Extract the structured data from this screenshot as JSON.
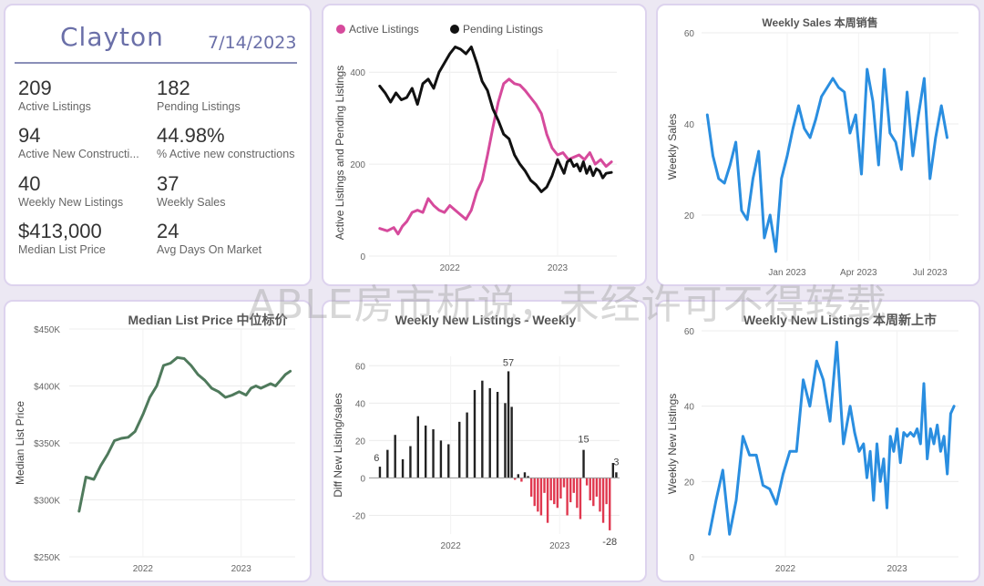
{
  "summary": {
    "city": "Clayton",
    "date": "7/14/2023",
    "kpis": [
      {
        "value": "209",
        "label": "Active Listings"
      },
      {
        "value": "182",
        "label": "Pending Listings"
      },
      {
        "value": "94",
        "label": "Active New Constructi..."
      },
      {
        "value": "44.98%",
        "label": "% Active new constructions"
      },
      {
        "value": "40",
        "label": "Weekly New Listings"
      },
      {
        "value": "37",
        "label": "Weekly Sales"
      },
      {
        "value": "$413,000",
        "label": "Median List Price"
      },
      {
        "value": "24",
        "label": "Avg Days On Market"
      }
    ]
  },
  "watermark": "ABLE房市析说，未经许可不得转载",
  "chart_data": [
    {
      "id": "active-pending",
      "type": "line",
      "title": "",
      "xlabel": "",
      "ylabel": "Active Listings and Pending Listings",
      "xlim": [
        2021.25,
        2023.55
      ],
      "ylim": [
        0,
        450
      ],
      "yticks": [
        0,
        200,
        400
      ],
      "xticks": [
        {
          "v": 2022,
          "label": "2022"
        },
        {
          "v": 2023,
          "label": "2023"
        }
      ],
      "legend": "top-left",
      "colors": [
        "#d64a9c",
        "#111111"
      ],
      "series": [
        {
          "name": "Active Listings",
          "x": [
            2021.35,
            2021.42,
            2021.48,
            2021.52,
            2021.56,
            2021.6,
            2021.65,
            2021.7,
            2021.75,
            2021.8,
            2021.85,
            2021.9,
            2021.95,
            2022.0,
            2022.05,
            2022.1,
            2022.15,
            2022.2,
            2022.25,
            2022.3,
            2022.35,
            2022.4,
            2022.45,
            2022.5,
            2022.55,
            2022.6,
            2022.65,
            2022.7,
            2022.75,
            2022.8,
            2022.85,
            2022.9,
            2022.95,
            2023.0,
            2023.05,
            2023.1,
            2023.15,
            2023.2,
            2023.25,
            2023.3,
            2023.35,
            2023.4,
            2023.45,
            2023.5
          ],
          "values": [
            60,
            55,
            62,
            48,
            65,
            75,
            95,
            100,
            95,
            125,
            110,
            100,
            95,
            110,
            100,
            90,
            80,
            100,
            140,
            165,
            220,
            280,
            335,
            375,
            385,
            375,
            372,
            360,
            345,
            330,
            310,
            265,
            235,
            220,
            225,
            210,
            215,
            220,
            210,
            225,
            200,
            210,
            195,
            205
          ]
        },
        {
          "name": "Pending Listings",
          "x": [
            2021.35,
            2021.4,
            2021.45,
            2021.5,
            2021.55,
            2021.6,
            2021.65,
            2021.7,
            2021.75,
            2021.8,
            2021.85,
            2021.9,
            2021.95,
            2022.0,
            2022.05,
            2022.1,
            2022.15,
            2022.2,
            2022.25,
            2022.3,
            2022.35,
            2022.4,
            2022.45,
            2022.5,
            2022.55,
            2022.6,
            2022.65,
            2022.7,
            2022.75,
            2022.8,
            2022.85,
            2022.9,
            2022.95,
            2023.0,
            2023.03,
            2023.06,
            2023.09,
            2023.12,
            2023.15,
            2023.18,
            2023.21,
            2023.24,
            2023.27,
            2023.3,
            2023.33,
            2023.36,
            2023.39,
            2023.42,
            2023.45,
            2023.5
          ],
          "values": [
            370,
            355,
            335,
            355,
            340,
            345,
            365,
            330,
            375,
            385,
            365,
            400,
            420,
            440,
            455,
            450,
            440,
            455,
            420,
            380,
            360,
            320,
            295,
            265,
            255,
            220,
            200,
            185,
            165,
            155,
            140,
            150,
            175,
            210,
            195,
            180,
            205,
            210,
            195,
            200,
            185,
            205,
            180,
            195,
            175,
            190,
            185,
            170,
            180,
            182
          ]
        }
      ]
    },
    {
      "id": "weekly-sales",
      "type": "line",
      "title": "Weekly Sales 本周销售",
      "xlabel": "",
      "ylabel": "Weekly Sales",
      "xlim": [
        2022.7,
        2023.6
      ],
      "ylim": [
        10,
        60
      ],
      "yticks": [
        20,
        40,
        60
      ],
      "xticks": [
        {
          "v": 2023.0,
          "label": "Jan 2023"
        },
        {
          "v": 2023.25,
          "label": "Apr 2023"
        },
        {
          "v": 2023.5,
          "label": "Jul 2023"
        }
      ],
      "colors": [
        "#2a8ee0"
      ],
      "series": [
        {
          "name": "",
          "x": [
            2022.72,
            2022.74,
            2022.76,
            2022.78,
            2022.8,
            2022.82,
            2022.84,
            2022.86,
            2022.88,
            2022.9,
            2022.92,
            2022.94,
            2022.96,
            2022.98,
            2023.0,
            2023.02,
            2023.04,
            2023.06,
            2023.08,
            2023.1,
            2023.12,
            2023.14,
            2023.16,
            2023.18,
            2023.2,
            2023.22,
            2023.24,
            2023.26,
            2023.28,
            2023.3,
            2023.32,
            2023.34,
            2023.36,
            2023.38,
            2023.4,
            2023.42,
            2023.44,
            2023.46,
            2023.48,
            2023.5,
            2023.52,
            2023.54,
            2023.56
          ],
          "values": [
            42,
            33,
            28,
            27,
            31,
            36,
            21,
            19,
            28,
            34,
            15,
            20,
            12,
            28,
            33,
            39,
            44,
            39,
            37,
            41,
            46,
            48,
            50,
            48,
            47,
            38,
            42,
            29,
            52,
            45,
            31,
            52,
            38,
            36,
            30,
            47,
            33,
            42,
            50,
            28,
            37,
            44,
            37
          ]
        }
      ]
    },
    {
      "id": "median-list-price",
      "type": "line",
      "title": "Median List Price  中位标价",
      "xlabel": "",
      "ylabel": "Median List Price",
      "xlim": [
        2021.25,
        2023.55
      ],
      "ylim": [
        250000,
        450000
      ],
      "yticks": [
        {
          "v": 250000,
          "label": "$250K"
        },
        {
          "v": 300000,
          "label": "$300K"
        },
        {
          "v": 350000,
          "label": "$350K"
        },
        {
          "v": 400000,
          "label": "$400K"
        },
        {
          "v": 450000,
          "label": "$450K"
        }
      ],
      "xticks": [
        {
          "v": 2022,
          "label": "2022"
        },
        {
          "v": 2023,
          "label": "2023"
        }
      ],
      "colors": [
        "#4f7a5c"
      ],
      "series": [
        {
          "name": "",
          "x": [
            2021.35,
            2021.42,
            2021.5,
            2021.57,
            2021.64,
            2021.71,
            2021.78,
            2021.85,
            2021.92,
            2022.0,
            2022.07,
            2022.14,
            2022.21,
            2022.28,
            2022.35,
            2022.42,
            2022.49,
            2022.56,
            2022.63,
            2022.7,
            2022.77,
            2022.84,
            2022.91,
            2022.98,
            2023.05,
            2023.1,
            2023.15,
            2023.2,
            2023.25,
            2023.3,
            2023.35,
            2023.4,
            2023.45,
            2023.5
          ],
          "values": [
            290000,
            320000,
            318000,
            330000,
            340000,
            352000,
            354000,
            355000,
            360000,
            375000,
            390000,
            400000,
            418000,
            420000,
            425000,
            424000,
            418000,
            410000,
            405000,
            398000,
            395000,
            390000,
            392000,
            395000,
            392000,
            398000,
            400000,
            398000,
            400000,
            402000,
            400000,
            405000,
            410000,
            413000
          ]
        }
      ]
    },
    {
      "id": "diff-new-listings",
      "type": "bar",
      "title": "Weekly New Listings - Weekly",
      "xlabel": "",
      "ylabel": "Diff New Listing/sales",
      "xlim": [
        2021.25,
        2023.55
      ],
      "ylim": [
        -30,
        65
      ],
      "yticks": [
        -20,
        0,
        20,
        40,
        60
      ],
      "xticks": [
        {
          "v": 2022,
          "label": "2022"
        },
        {
          "v": 2023,
          "label": "2023"
        }
      ],
      "colors": [
        "#222222",
        "#e0384f"
      ],
      "data_labels": [
        {
          "v": 6,
          "label": "6"
        },
        {
          "v": 57,
          "label": "57"
        },
        {
          "v": 15,
          "label": "15"
        },
        {
          "v": 3,
          "label": "3"
        },
        {
          "v": -28,
          "label": "-28"
        }
      ],
      "x": [
        2021.35,
        2021.42,
        2021.49,
        2021.56,
        2021.63,
        2021.7,
        2021.77,
        2021.84,
        2021.91,
        2021.98,
        2022.08,
        2022.15,
        2022.22,
        2022.29,
        2022.36,
        2022.43,
        2022.5,
        2022.53,
        2022.56,
        2022.59,
        2022.62,
        2022.65,
        2022.68,
        2022.71,
        2022.74,
        2022.77,
        2022.8,
        2022.83,
        2022.86,
        2022.89,
        2022.92,
        2022.95,
        2022.98,
        2023.01,
        2023.04,
        2023.07,
        2023.1,
        2023.13,
        2023.16,
        2023.19,
        2023.22,
        2023.25,
        2023.28,
        2023.31,
        2023.34,
        2023.37,
        2023.4,
        2023.43,
        2023.46,
        2023.49,
        2023.52
      ],
      "values": [
        6,
        15,
        23,
        10,
        17,
        33,
        28,
        26,
        20,
        18,
        30,
        35,
        47,
        52,
        48,
        46,
        40,
        57,
        38,
        -1,
        2,
        -2,
        3,
        1,
        -10,
        -15,
        -18,
        -20,
        -8,
        -24,
        -12,
        -14,
        -16,
        -11,
        -5,
        -20,
        -13,
        -8,
        -16,
        -22,
        15,
        -4,
        -12,
        -15,
        -10,
        -18,
        -24,
        -14,
        -28,
        8,
        3
      ]
    },
    {
      "id": "weekly-new-listings",
      "type": "line",
      "title": "Weekly New Listings  本周新上市",
      "xlabel": "",
      "ylabel": "Weekly New Listings",
      "xlim": [
        2021.25,
        2023.55
      ],
      "ylim": [
        0,
        60
      ],
      "yticks": [
        0,
        20,
        40,
        60
      ],
      "xticks": [
        {
          "v": 2022,
          "label": "2022"
        },
        {
          "v": 2023,
          "label": "2023"
        }
      ],
      "colors": [
        "#2a8ee0"
      ],
      "series": [
        {
          "name": "",
          "x": [
            2021.32,
            2021.38,
            2021.44,
            2021.5,
            2021.56,
            2021.62,
            2021.68,
            2021.74,
            2021.8,
            2021.86,
            2021.92,
            2021.98,
            2022.04,
            2022.1,
            2022.16,
            2022.22,
            2022.28,
            2022.34,
            2022.4,
            2022.46,
            2022.52,
            2022.58,
            2022.62,
            2022.66,
            2022.7,
            2022.73,
            2022.76,
            2022.79,
            2022.82,
            2022.85,
            2022.88,
            2022.91,
            2022.94,
            2022.97,
            2023.0,
            2023.03,
            2023.06,
            2023.09,
            2023.12,
            2023.15,
            2023.18,
            2023.21,
            2023.24,
            2023.27,
            2023.3,
            2023.33,
            2023.36,
            2023.39,
            2023.42,
            2023.45,
            2023.48,
            2023.51
          ],
          "values": [
            6,
            15,
            23,
            6,
            15,
            32,
            27,
            27,
            19,
            18,
            14,
            22,
            28,
            28,
            47,
            40,
            52,
            47,
            36,
            57,
            30,
            40,
            33,
            28,
            30,
            21,
            28,
            15,
            30,
            20,
            26,
            13,
            32,
            28,
            34,
            25,
            33,
            32,
            33,
            32,
            34,
            30,
            46,
            26,
            34,
            30,
            35,
            28,
            32,
            22,
            38,
            40
          ]
        }
      ]
    }
  ]
}
